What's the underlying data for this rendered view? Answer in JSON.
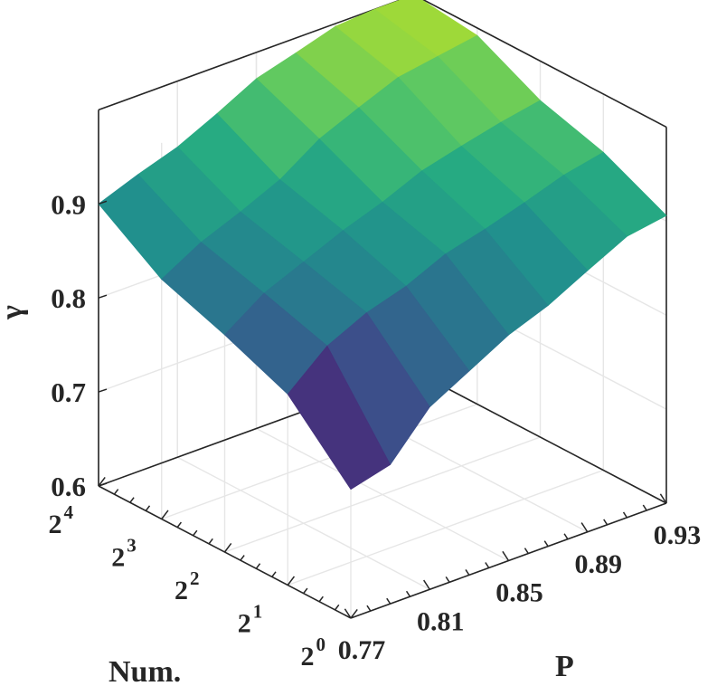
{
  "chart_data": {
    "type": "surface",
    "title": "",
    "xlabel": "P",
    "ylabel": "Num.",
    "zlabel": "γ",
    "x": [
      0.77,
      0.79,
      0.81,
      0.83,
      0.85,
      0.87,
      0.89,
      0.91,
      0.93
    ],
    "x_ticks": [
      "0.77",
      "0.81",
      "0.85",
      "0.89",
      "0.93"
    ],
    "y": [
      1,
      2,
      4,
      8,
      16
    ],
    "y_scale": "log2",
    "y_ticks": [
      {
        "base": "2",
        "exp": "0"
      },
      {
        "base": "2",
        "exp": "1"
      },
      {
        "base": "2",
        "exp": "2"
      },
      {
        "base": "2",
        "exp": "3"
      },
      {
        "base": "2",
        "exp": "4"
      }
    ],
    "z_ticks": [
      "0.6",
      "0.7",
      "0.8",
      "0.9"
    ],
    "zlim": [
      0.6,
      1.0
    ],
    "colormap": [
      "#440154",
      "#472c7a",
      "#3b518b",
      "#2c718e",
      "#21908d",
      "#27ad81",
      "#5cc863",
      "#aadc32"
    ],
    "grid": true,
    "values": [
      [
        0.737,
        0.748,
        0.794,
        0.817,
        0.84,
        0.856,
        0.878,
        0.899,
        0.906
      ],
      [
        0.803,
        0.839,
        0.859,
        0.872,
        0.891,
        0.902,
        0.915,
        0.929,
        0.938
      ],
      [
        0.831,
        0.86,
        0.878,
        0.896,
        0.911,
        0.929,
        0.94,
        0.95,
        0.958
      ],
      [
        0.855,
        0.879,
        0.896,
        0.915,
        0.943,
        0.961,
        0.978,
        0.985,
        0.992
      ],
      [
        0.9,
        0.916,
        0.93,
        0.95,
        0.972,
        0.984,
        0.997,
        1.0,
        1.0
      ]
    ]
  }
}
